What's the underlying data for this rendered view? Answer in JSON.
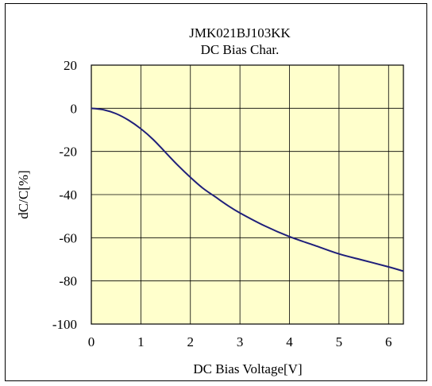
{
  "chart_data": {
    "type": "line",
    "title": "JMK021BJ103KK",
    "subtitle": "DC Bias Char.",
    "xlabel": "DC Bias Voltage[V]",
    "ylabel": "dC/C[%]",
    "xlim": [
      0,
      6.3
    ],
    "ylim": [
      -100,
      20
    ],
    "x_ticks": [
      0,
      1,
      2,
      3,
      4,
      5,
      6
    ],
    "y_ticks": [
      20,
      0,
      -20,
      -40,
      -60,
      -80,
      -100
    ],
    "grid": true,
    "legend": "none",
    "plot_background": "#FFFFCC",
    "series": [
      {
        "color": "#1F1F7A",
        "x": [
          0,
          0.25,
          0.5,
          0.75,
          1.0,
          1.25,
          1.5,
          1.75,
          2.0,
          2.25,
          2.5,
          2.75,
          3.0,
          3.5,
          4.0,
          4.5,
          5.0,
          5.5,
          6.0,
          6.3
        ],
        "y": [
          0,
          -0.7,
          -2.5,
          -5.5,
          -9.5,
          -14.5,
          -20.5,
          -26.5,
          -32,
          -37,
          -41,
          -45,
          -48.5,
          -54.5,
          -59.5,
          -63.5,
          -67.5,
          -70.5,
          -73.5,
          -75.5
        ]
      }
    ]
  }
}
